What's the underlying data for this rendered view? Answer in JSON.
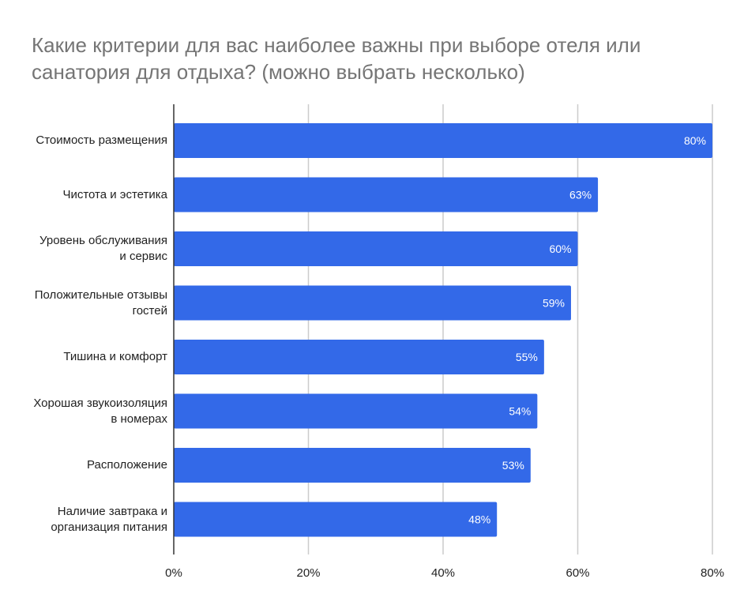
{
  "chart_data": {
    "type": "bar",
    "orientation": "horizontal",
    "title": "Какие критерии для вас наиболее важны при выборе отеля или санатория для отдыха? (можно выбрать несколько)",
    "categories": [
      "Стоимость размещения",
      "Чистота и эстетика",
      "Уровень обслуживания и сервис",
      "Положительные отзывы гостей",
      "Тишина и комфорт",
      "Хорошая звукоизоляция в номерах",
      "Расположение",
      "Наличие завтрака и организация питания"
    ],
    "values": [
      80,
      63,
      60,
      59,
      55,
      54,
      53,
      48
    ],
    "data_labels": [
      "80%",
      "63%",
      "60%",
      "59%",
      "55%",
      "54%",
      "53%",
      "48%"
    ],
    "xlim": [
      0,
      80
    ],
    "x_ticks": [
      0,
      20,
      40,
      60,
      80
    ],
    "x_tick_labels": [
      "0%",
      "20%",
      "40%",
      "60%",
      "80%"
    ],
    "xlabel": "",
    "ylabel": "",
    "grid": true,
    "legend": "none",
    "colors": {
      "bar": "#3369e8",
      "grid": "#cccccc",
      "axis": "#333333",
      "label": "#ffffff"
    }
  }
}
